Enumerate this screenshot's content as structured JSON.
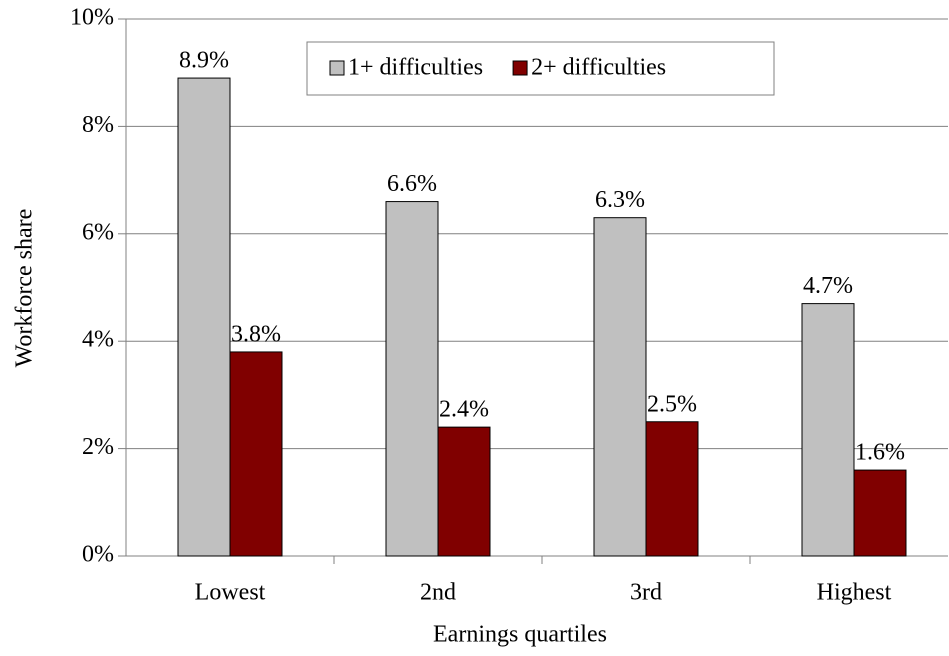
{
  "chart_data": {
    "type": "bar",
    "categories": [
      "Lowest",
      "2nd",
      "3rd",
      "Highest"
    ],
    "series": [
      {
        "name": "1+ difficulties",
        "color": "#c0c0c0",
        "values": [
          8.9,
          6.6,
          6.3,
          4.7
        ],
        "value_labels": [
          "8.9%",
          "6.6%",
          "6.3%",
          "4.7%"
        ]
      },
      {
        "name": "2+ difficulties",
        "color": "#800000",
        "values": [
          3.8,
          2.4,
          2.5,
          1.6
        ],
        "value_labels": [
          "3.8%",
          "2.4%",
          "2.5%",
          "1.6%"
        ]
      }
    ],
    "ylim": [
      0,
      10
    ],
    "yticks": [
      {
        "value": 0,
        "label": "0%"
      },
      {
        "value": 2,
        "label": "2%"
      },
      {
        "value": 4,
        "label": "4%"
      },
      {
        "value": 6,
        "label": "6%"
      },
      {
        "value": 8,
        "label": "8%"
      },
      {
        "value": 10,
        "label": "10%"
      }
    ],
    "xlabel": "Earnings quartiles",
    "ylabel": "Workforce share",
    "grid": true,
    "legend": "top"
  }
}
